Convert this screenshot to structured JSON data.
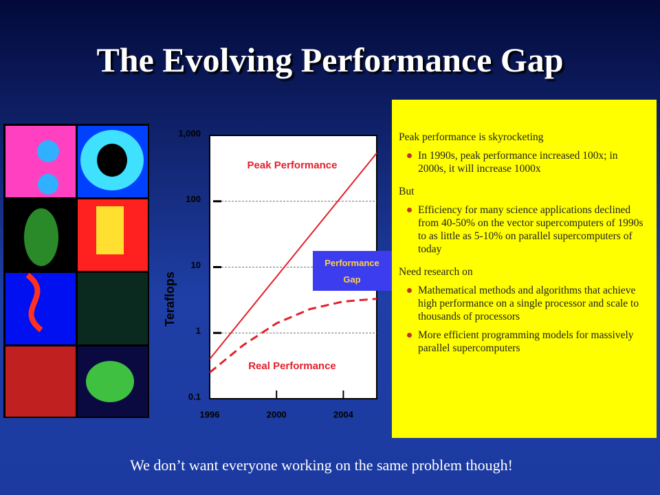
{
  "title": "The Evolving Performance Gap",
  "chart_data": {
    "type": "line",
    "y_label": "Teraflops",
    "log_y": true,
    "xlim": [
      1996,
      2006
    ],
    "xticks": [
      1996,
      2000,
      2004
    ],
    "ylim": [
      0.1,
      1000
    ],
    "yticks": [
      0.1,
      1,
      10,
      100,
      {
        "value": 1000,
        "label": "1,000"
      }
    ],
    "grid": true,
    "series": [
      {
        "name": "Peak Performance",
        "color": "#e3202b",
        "dashed": false,
        "x": [
          1996,
          2006
        ],
        "values": [
          0.4,
          540
        ]
      },
      {
        "name": "Real Performance",
        "color": "#e3202b",
        "dashed": true,
        "x": [
          1996,
          1998,
          2000,
          2002,
          2004,
          2006
        ],
        "values": [
          0.25,
          0.65,
          1.4,
          2.3,
          3.0,
          3.3
        ]
      }
    ],
    "gap_label": "Performance Gap"
  },
  "text_box": {
    "sections": [
      {
        "heading": "Peak performance is skyrocketing",
        "bullets": [
          "In 1990s, peak performance increased 100x; in 2000s, it will increase 1000x"
        ]
      },
      {
        "heading": "But",
        "bullets": [
          "Efficiency for many science applications declined from 40-50% on the vector supercomputers of 1990s to as little as 5-10% on parallel supercomputers of today"
        ]
      },
      {
        "heading": "Need research on",
        "bullets": [
          "Mathematical methods and algorithms that achieve high performance on a single processor and scale to thousands of processors",
          "More efficient programming models for massively parallel supercomputers"
        ]
      }
    ]
  },
  "footer": "We don’t want everyone working on the same problem though!"
}
